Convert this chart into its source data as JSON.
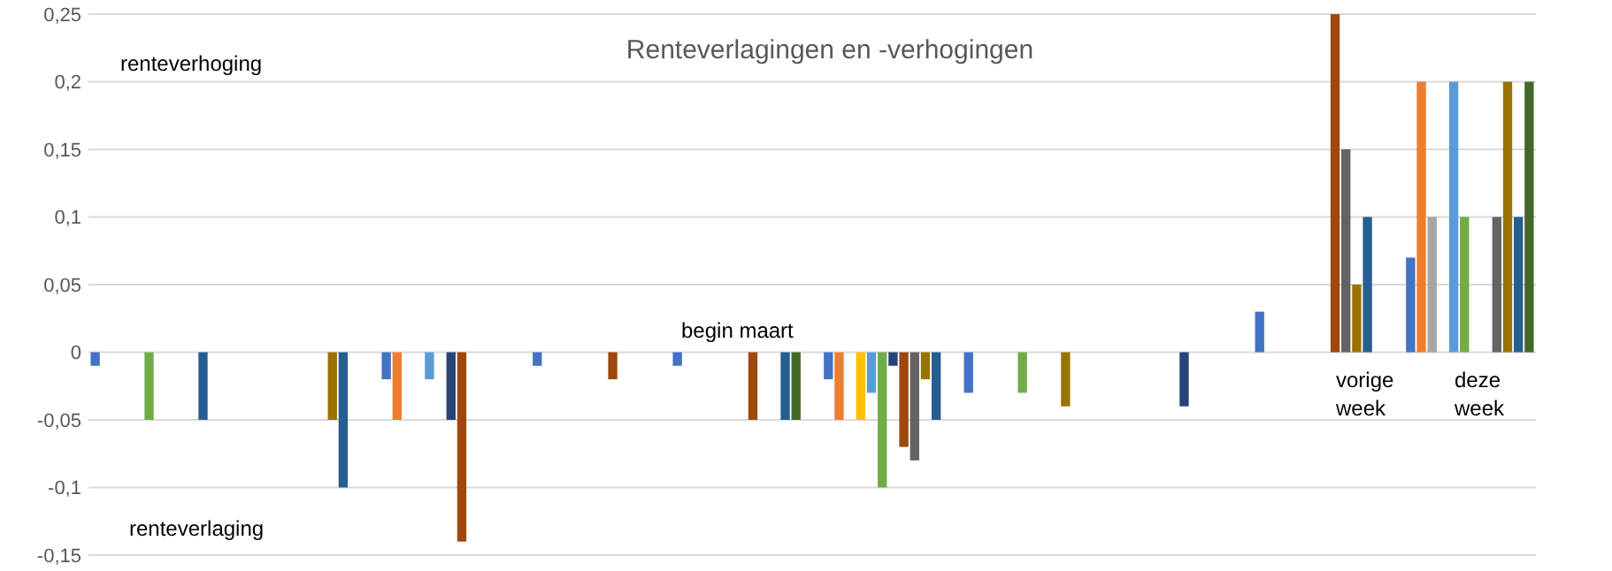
{
  "chart_data": {
    "type": "bar",
    "title": "Renteverlagingen en -verhogingen",
    "categories": [
      null,
      null,
      null,
      null,
      null,
      null,
      null,
      null,
      null,
      null,
      null,
      null,
      null,
      null,
      null,
      null,
      null,
      null,
      null,
      null,
      null,
      null,
      null,
      null,
      null,
      null,
      null,
      null,
      null,
      null,
      null,
      null,
      null,
      null,
      null,
      null,
      null,
      null,
      null,
      null,
      null,
      null,
      null,
      null,
      null,
      null,
      null,
      null,
      null,
      null,
      null,
      null,
      null,
      null,
      null,
      null,
      null,
      null,
      null,
      null,
      null,
      null,
      null,
      null,
      null,
      null,
      null,
      null,
      null,
      null,
      null,
      null,
      null,
      null,
      null,
      null,
      null,
      null,
      null,
      null,
      null,
      null,
      null,
      null,
      null,
      null,
      null,
      null,
      null,
      null,
      null,
      null,
      null,
      null,
      null,
      null,
      null,
      null,
      null,
      null,
      null,
      null,
      null,
      null,
      null,
      null,
      null,
      null,
      null,
      null,
      null,
      null,
      null,
      null,
      null,
      null,
      null,
      null,
      null,
      null,
      null,
      null,
      null,
      null,
      null,
      null,
      null,
      null,
      null,
      null,
      null,
      null,
      null,
      null
    ],
    "values": [
      -0.01,
      null,
      null,
      null,
      null,
      -0.05,
      null,
      null,
      null,
      null,
      -0.05,
      null,
      null,
      null,
      null,
      null,
      null,
      null,
      null,
      null,
      null,
      null,
      -0.05,
      -0.1,
      null,
      null,
      null,
      -0.02,
      -0.05,
      null,
      null,
      -0.02,
      null,
      -0.05,
      -0.14,
      null,
      null,
      null,
      null,
      null,
      null,
      -0.01,
      null,
      null,
      null,
      null,
      null,
      null,
      -0.02,
      null,
      null,
      null,
      null,
      null,
      -0.01,
      null,
      null,
      null,
      null,
      null,
      null,
      -0.05,
      null,
      null,
      -0.05,
      -0.05,
      null,
      null,
      -0.02,
      -0.05,
      null,
      -0.05,
      -0.03,
      -0.1,
      -0.01,
      -0.07,
      -0.08,
      -0.02,
      -0.05,
      null,
      null,
      -0.03,
      null,
      null,
      null,
      null,
      -0.03,
      null,
      null,
      null,
      -0.04,
      null,
      null,
      null,
      null,
      null,
      null,
      null,
      null,
      null,
      null,
      -0.04,
      null,
      null,
      null,
      null,
      null,
      null,
      0.03,
      null,
      null,
      null,
      null,
      null,
      null,
      0.25,
      0.15,
      0.05,
      0.1,
      null,
      null,
      null,
      0.07,
      0.2,
      0.1,
      null,
      0.2,
      0.1,
      null,
      null,
      0.1,
      0.2,
      0.1,
      0.2
    ],
    "colors": [
      "#4472c4",
      null,
      null,
      null,
      null,
      "#70ad47",
      null,
      null,
      null,
      null,
      "#255e91",
      null,
      null,
      null,
      null,
      null,
      null,
      null,
      null,
      null,
      null,
      null,
      "#997300",
      "#255e91",
      null,
      null,
      null,
      "#4472c4",
      "#ed7d31",
      null,
      null,
      "#5b9bd5",
      null,
      "#264478",
      "#9e480e",
      null,
      null,
      null,
      null,
      null,
      null,
      "#4472c4",
      null,
      null,
      null,
      null,
      null,
      null,
      "#9e480e",
      null,
      null,
      null,
      null,
      null,
      "#4472c4",
      null,
      null,
      null,
      null,
      null,
      null,
      "#9e480e",
      null,
      null,
      "#255e91",
      "#43682b",
      null,
      null,
      "#4472c4",
      "#ed7d31",
      null,
      "#ffc000",
      "#5b9bd5",
      "#70ad47",
      "#264478",
      "#9e480e",
      "#636363",
      "#997300",
      "#255e91",
      null,
      null,
      "#4472c4",
      null,
      null,
      null,
      null,
      "#70ad47",
      null,
      null,
      null,
      "#997300",
      null,
      null,
      null,
      null,
      null,
      null,
      null,
      null,
      null,
      null,
      "#264478",
      null,
      null,
      null,
      null,
      null,
      null,
      "#4472c4",
      null,
      null,
      null,
      null,
      null,
      null,
      "#9e480e",
      "#636363",
      "#997300",
      "#255e91",
      null,
      null,
      null,
      "#4472c4",
      "#ed7d31",
      "#a5a5a5",
      null,
      "#5b9bd5",
      "#70ad47",
      null,
      null,
      "#636363",
      "#997300",
      "#255e91",
      "#43682b"
    ],
    "ylim": [
      -0.15,
      0.25
    ],
    "yticks": [
      {
        "value": -0.15,
        "label": "-0,15"
      },
      {
        "value": -0.1,
        "label": "-0,1"
      },
      {
        "value": -0.05,
        "label": "-0,05"
      },
      0,
      {
        "value": 0.05,
        "label": "0,05"
      },
      {
        "value": 0.1,
        "label": "0,1"
      },
      {
        "value": 0.15,
        "label": "0,15"
      },
      {
        "value": 0.2,
        "label": "0,2"
      },
      {
        "value": 0.25,
        "label": "0,25"
      }
    ],
    "grid": "y",
    "annotations": [
      "renteverhoging",
      "renteverlaging",
      "begin maart",
      "vorige week",
      "deze week"
    ]
  }
}
